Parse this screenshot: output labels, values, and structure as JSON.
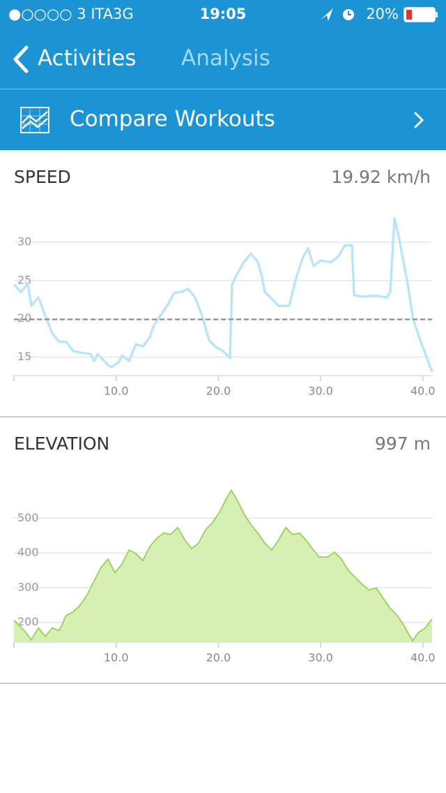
{
  "status_bar": {
    "carrier": "●○○○○ 3 ITA",
    "network": "3G",
    "time": "19:05",
    "battery": "20%"
  },
  "nav": {
    "back": "Activities",
    "title": "Analysis"
  },
  "banner": {
    "label": "Compare Workouts"
  },
  "chart_data": [
    {
      "type": "line",
      "title": "SPEED",
      "summary": "19.92 km/h",
      "reference_line": 19.92,
      "x": [
        0,
        0.68,
        1.36,
        1.7,
        2.39,
        3.07,
        3.75,
        4.43,
        5.11,
        5.79,
        6.48,
        7.5,
        7.84,
        8.18,
        9.2,
        9.54,
        10.22,
        10.57,
        11.25,
        11.93,
        12.61,
        13.29,
        13.63,
        14.31,
        14.99,
        15.68,
        16.36,
        17.04,
        17.72,
        18.4,
        19.09,
        19.77,
        20.45,
        21.13,
        21.34,
        21.81,
        22.49,
        23.18,
        23.86,
        24.2,
        24.54,
        25.22,
        25.9,
        26.93,
        27.61,
        28.29,
        28.77,
        29.31,
        29.99,
        31.02,
        31.7,
        32.38,
        33.06,
        33.27,
        34.08,
        35.45,
        36.47,
        36.81,
        37.22,
        37.63,
        38.52,
        39.06,
        39.88,
        40.9
      ],
      "series": [
        {
          "color": "#b9e5f8",
          "values": [
            24.5,
            23.5,
            24.6,
            21.7,
            22.8,
            20.4,
            18.1,
            17,
            17,
            15.8,
            15.6,
            15.4,
            14.5,
            15.4,
            14,
            13.7,
            14.3,
            15.2,
            14.5,
            16.7,
            16.4,
            17.6,
            19,
            20.4,
            21.7,
            23.4,
            23.5,
            23.9,
            22.8,
            20.4,
            17.2,
            16.3,
            15.8,
            14.9,
            24.5,
            25.8,
            27.4,
            28.5,
            27.4,
            25.8,
            23.5,
            22.6,
            21.7,
            21.7,
            25.4,
            28.1,
            29.2,
            26.9,
            27.6,
            27.4,
            28.1,
            29.6,
            29.6,
            23.1,
            22.9,
            23,
            22.8,
            23.5,
            33.1,
            30.8,
            24.5,
            19.9,
            16.7,
            13.1
          ]
        }
      ],
      "xlim": [
        0,
        40.9
      ],
      "ylim": [
        12.6,
        34
      ],
      "xticks": [
        {
          "value": 10,
          "label": "10.0"
        },
        {
          "value": 20,
          "label": "20.0"
        },
        {
          "value": 30,
          "label": "30.0"
        },
        {
          "value": 40,
          "label": "40.0"
        }
      ],
      "yticks": [
        15,
        20,
        25,
        30
      ],
      "grid": true
    },
    {
      "type": "area",
      "title": "ELEVATION",
      "summary": "997 m",
      "x": [
        0,
        1.02,
        1.7,
        2.39,
        3.07,
        3.75,
        4.43,
        5.11,
        5.79,
        6.48,
        7.16,
        7.84,
        8.52,
        9.2,
        9.88,
        10.57,
        11.25,
        11.93,
        12.61,
        13.29,
        13.97,
        14.66,
        15.34,
        16.02,
        16.7,
        17.38,
        18.06,
        18.75,
        19.43,
        20.11,
        20.79,
        21.27,
        21.81,
        22.49,
        23.18,
        23.86,
        24.54,
        25.22,
        25.9,
        26.58,
        27.27,
        27.95,
        28.63,
        29.31,
        29.86,
        30.67,
        31.36,
        32.04,
        32.72,
        33.4,
        34.08,
        34.76,
        35.45,
        36.13,
        36.81,
        37.49,
        38.17,
        38.99,
        39.54,
        40.22,
        40.9
      ],
      "series": [
        {
          "color": "#9fd45b",
          "fill": "#d5efb5",
          "values": [
            206,
            176,
            150,
            184,
            160,
            184,
            176,
            220,
            230,
            250,
            279,
            319,
            358,
            382,
            343,
            368,
            408,
            398,
            378,
            418,
            442,
            457,
            453,
            473,
            438,
            412,
            428,
            467,
            487,
            517,
            557,
            580,
            553,
            513,
            481,
            457,
            428,
            408,
            438,
            473,
            453,
            457,
            434,
            408,
            388,
            388,
            402,
            382,
            349,
            329,
            309,
            293,
            299,
            269,
            240,
            220,
            190,
            147,
            170,
            184,
            210
          ]
        }
      ],
      "xlim": [
        0,
        40.9
      ],
      "ylim": [
        143,
        615
      ],
      "xticks": [
        {
          "value": 10,
          "label": "10.0"
        },
        {
          "value": 20,
          "label": "20.0"
        },
        {
          "value": 30,
          "label": "30.0"
        },
        {
          "value": 40,
          "label": "40.0"
        }
      ],
      "yticks": [
        200,
        300,
        400,
        500
      ],
      "grid": true
    }
  ]
}
